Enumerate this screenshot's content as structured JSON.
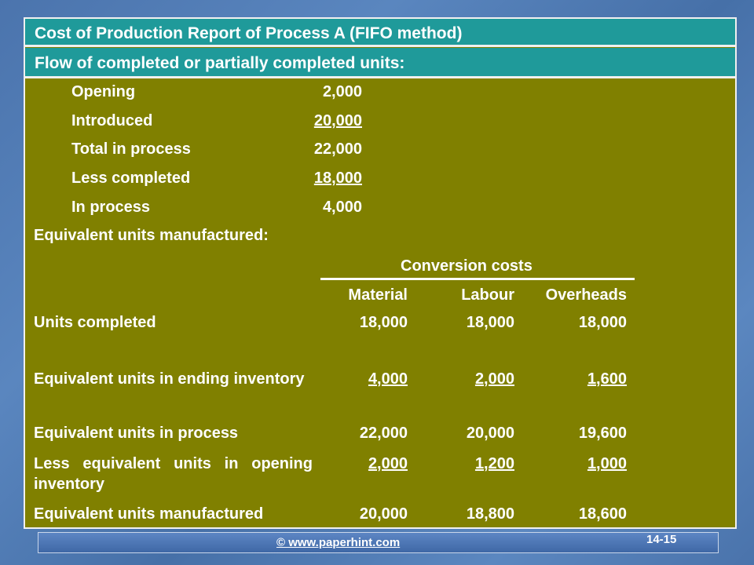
{
  "header": {
    "title": "Cost of Production Report of Process A (FIFO method)",
    "subtitle": "Flow of completed or partially completed units:"
  },
  "flow": [
    {
      "label": "Opening",
      "value": "2,000",
      "underline": false
    },
    {
      "label": "Introduced",
      "value": "20,000",
      "underline": true
    },
    {
      "label": "Total in process",
      "value": "22,000",
      "underline": false
    },
    {
      "label": "Less completed",
      "value": "18,000",
      "underline": true
    },
    {
      "label": "In process",
      "value": "4,000",
      "underline": false
    }
  ],
  "equiv_heading": "Equivalent units manufactured:",
  "conversion_costs": "Conversion costs",
  "columns": [
    "Material",
    "Labour",
    "Overheads"
  ],
  "rows": [
    {
      "label": "Units completed",
      "values": [
        "18,000",
        "18,000",
        "18,000"
      ]
    },
    {
      "label": "Equivalent units in ending inventory",
      "values": [
        "4,000",
        "2,000",
        "1,600"
      ]
    },
    {
      "label": "Equivalent units in process",
      "values": [
        "22,000",
        "20,000",
        "19,600"
      ]
    },
    {
      "label": "Less equivalent units in opening inventory",
      "values": [
        "2,000",
        "1,200",
        "1,000"
      ]
    },
    {
      "label": "Equivalent units manufactured",
      "values": [
        "20,000",
        "18,800",
        "18,600"
      ]
    }
  ],
  "footer": {
    "url": "© www.paperhint.com",
    "page": "14-15"
  }
}
